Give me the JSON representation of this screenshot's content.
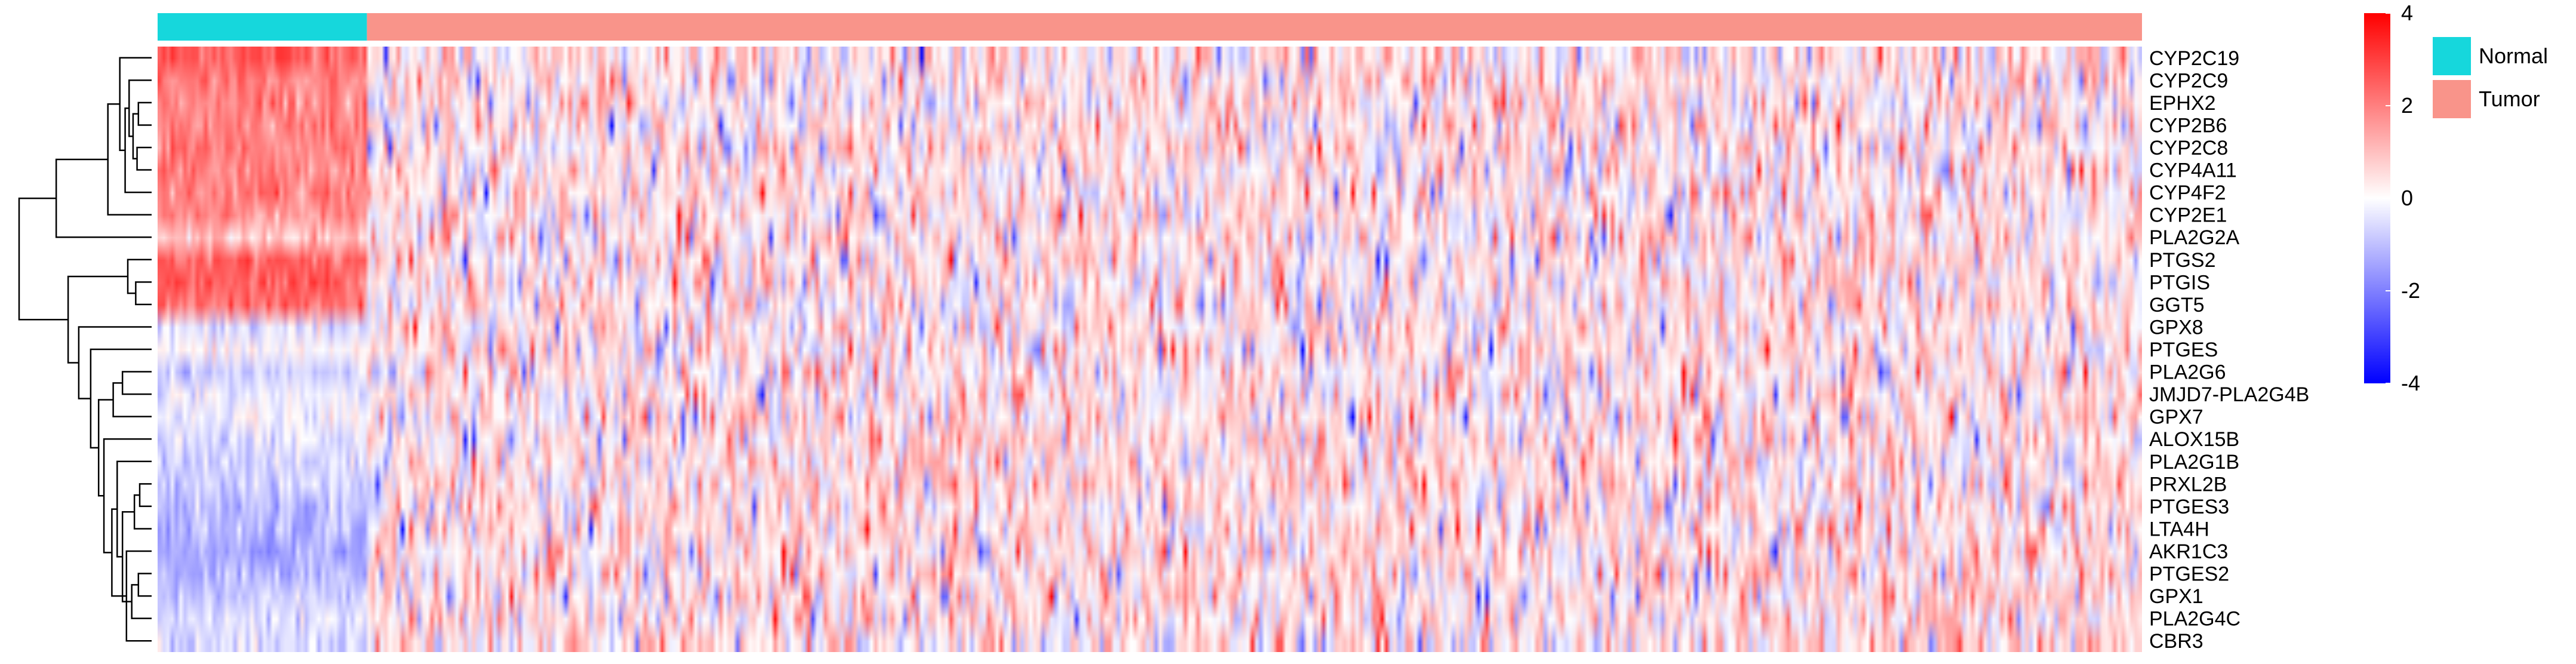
{
  "chart_data": {
    "type": "heatmap",
    "title": "",
    "color_scale": {
      "min": -4,
      "max": 4,
      "ticks": [
        4,
        2,
        0,
        -2,
        -4
      ],
      "low_color": "#0000ff",
      "mid_color": "#ffffff",
      "high_color": "#ff0000"
    },
    "groups": [
      {
        "name": "Normal",
        "color": "#16d7dc",
        "n_samples": 50
      },
      {
        "name": "Tumor",
        "color": "#f9948a",
        "n_samples": 424
      }
    ],
    "genes": [
      "CYP2C19",
      "CYP2C9",
      "EPHX2",
      "CYP2B6",
      "CYP2C8",
      "CYP4A11",
      "CYP4F2",
      "CYP2E1",
      "PLA2G2A",
      "PTGS2",
      "PTGIS",
      "GGT5",
      "GPX8",
      "PTGES",
      "PLA2G6",
      "JMJD7-PLA2G4B",
      "GPX7",
      "ALOX15B",
      "PLA2G1B",
      "PRXL2B",
      "PTGES3",
      "LTA4H",
      "AKR1C3",
      "PTGES2",
      "GPX1",
      "PLA2G4C",
      "CBR3"
    ],
    "normal_mean_z": [
      2.6,
      2.0,
      2.0,
      2.0,
      2.0,
      2.0,
      2.0,
      1.8,
      1.0,
      2.5,
      2.4,
      2.3,
      -0.5,
      0.0,
      -0.8,
      -0.3,
      -0.2,
      -0.4,
      -0.6,
      -0.7,
      -1.0,
      -1.2,
      -1.4,
      -1.1,
      -0.8,
      -0.6,
      -0.5
    ],
    "tumor_mean_z": [
      0.3,
      0.3,
      0.3,
      0.3,
      0.3,
      0.3,
      0.3,
      0.3,
      0.3,
      0.3,
      0.3,
      0.3,
      0.3,
      0.3,
      0.3,
      0.3,
      0.3,
      0.4,
      0.4,
      0.4,
      0.4,
      0.4,
      0.4,
      0.4,
      0.4,
      0.4,
      0.4
    ],
    "dendrogram_merges": [
      [
        2,
        3,
        0.1
      ],
      [
        4,
        5,
        0.11
      ],
      [
        27,
        28,
        0.14
      ],
      [
        1,
        29,
        0.17
      ],
      [
        30,
        6,
        0.2
      ],
      [
        0,
        31,
        0.24
      ],
      [
        32,
        7,
        0.33
      ],
      [
        10,
        11,
        0.12
      ],
      [
        9,
        34,
        0.18
      ],
      [
        19,
        20,
        0.09
      ],
      [
        36,
        21,
        0.13
      ],
      [
        23,
        24,
        0.1
      ],
      [
        38,
        25,
        0.15
      ],
      [
        37,
        39,
        0.22
      ],
      [
        18,
        40,
        0.26
      ],
      [
        22,
        26,
        0.19
      ],
      [
        41,
        42,
        0.3
      ],
      [
        17,
        43,
        0.36
      ],
      [
        14,
        15,
        0.22
      ],
      [
        45,
        16,
        0.29
      ],
      [
        44,
        46,
        0.4
      ],
      [
        13,
        47,
        0.46
      ],
      [
        12,
        48,
        0.55
      ],
      [
        35,
        49,
        0.63
      ],
      [
        8,
        33,
        0.72
      ],
      [
        50,
        51,
        1.0
      ]
    ]
  },
  "legend": {
    "items": [
      {
        "label": "Normal",
        "color": "#16d7dc"
      },
      {
        "label": "Tumor",
        "color": "#f9948a"
      }
    ]
  }
}
